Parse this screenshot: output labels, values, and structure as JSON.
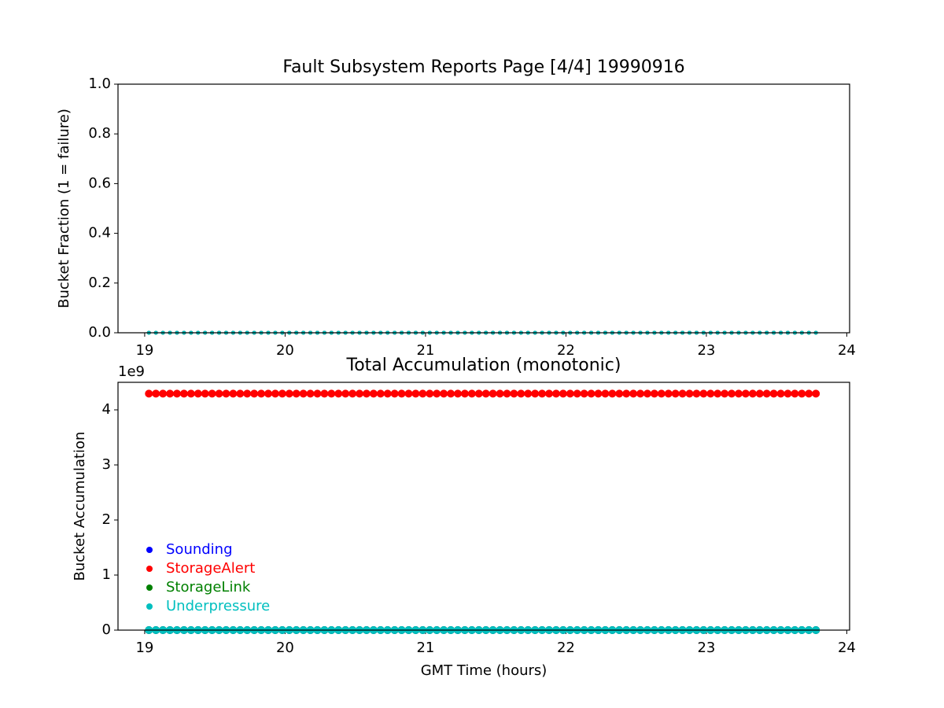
{
  "chart_data": [
    {
      "type": "scatter",
      "title": "Fault Subsystem Reports Page [4/4] 19990916",
      "y_label": "Bucket Fraction (1 = failure)",
      "x": [
        19.03,
        19.08,
        19.13,
        19.18,
        19.23,
        19.28,
        19.33,
        19.38,
        19.43,
        19.48,
        19.53,
        19.58,
        19.63,
        19.68,
        19.73,
        19.78,
        19.83,
        19.88,
        19.93,
        19.98,
        20.03,
        20.08,
        20.13,
        20.18,
        20.23,
        20.28,
        20.33,
        20.38,
        20.43,
        20.48,
        20.53,
        20.58,
        20.63,
        20.68,
        20.73,
        20.78,
        20.83,
        20.88,
        20.93,
        20.98,
        21.03,
        21.08,
        21.13,
        21.18,
        21.23,
        21.28,
        21.33,
        21.38,
        21.43,
        21.48,
        21.53,
        21.58,
        21.63,
        21.68,
        21.73,
        21.78,
        21.83,
        21.88,
        21.93,
        21.98,
        22.03,
        22.08,
        22.13,
        22.18,
        22.23,
        22.28,
        22.33,
        22.38,
        22.43,
        22.48,
        22.53,
        22.58,
        22.63,
        22.68,
        22.73,
        22.78,
        22.83,
        22.88,
        22.93,
        22.98,
        23.03,
        23.08,
        23.13,
        23.18,
        23.23,
        23.28,
        23.33,
        23.38,
        23.43,
        23.48,
        23.53,
        23.58,
        23.63,
        23.68,
        23.73,
        23.78
      ],
      "series": [
        {
          "color": "#0000ff",
          "values": [
            0,
            0,
            0,
            0,
            0,
            0,
            0,
            0,
            0,
            0,
            0,
            0,
            0,
            0,
            0,
            0,
            0,
            0,
            0,
            0,
            0,
            0,
            0,
            0,
            0,
            0,
            0,
            0,
            0,
            0,
            0,
            0,
            0,
            0,
            0,
            0,
            0,
            0,
            0,
            0,
            0,
            0,
            0,
            0,
            0,
            0,
            0,
            0,
            0,
            0,
            0,
            0,
            0,
            0,
            0,
            0,
            0,
            0,
            0,
            0,
            0,
            0,
            0,
            0,
            0,
            0,
            0,
            0,
            0,
            0,
            0,
            0,
            0,
            0,
            0,
            0,
            0,
            0,
            0,
            0,
            0,
            0,
            0,
            0,
            0,
            0,
            0,
            0,
            0,
            0,
            0,
            0,
            0,
            0,
            0,
            0
          ]
        },
        {
          "color": "#ff0000",
          "values": [
            0,
            0,
            0,
            0,
            0,
            0,
            0,
            0,
            0,
            0,
            0,
            0,
            0,
            0,
            0,
            0,
            0,
            0,
            0,
            0,
            0,
            0,
            0,
            0,
            0,
            0,
            0,
            0,
            0,
            0,
            0,
            0,
            0,
            0,
            0,
            0,
            0,
            0,
            0,
            0,
            0,
            0,
            0,
            0,
            0,
            0,
            0,
            0,
            0,
            0,
            0,
            0,
            0,
            0,
            0,
            0,
            0,
            0,
            0,
            0,
            0,
            0,
            0,
            0,
            0,
            0,
            0,
            0,
            0,
            0,
            0,
            0,
            0,
            0,
            0,
            0,
            0,
            0,
            0,
            0,
            0,
            0,
            0,
            0,
            0,
            0,
            0,
            0,
            0,
            0,
            0,
            0,
            0,
            0,
            0,
            0
          ]
        },
        {
          "color": "#008000",
          "values": [
            0,
            0,
            0,
            0,
            0,
            0,
            0,
            0,
            0,
            0,
            0,
            0,
            0,
            0,
            0,
            0,
            0,
            0,
            0,
            0,
            0,
            0,
            0,
            0,
            0,
            0,
            0,
            0,
            0,
            0,
            0,
            0,
            0,
            0,
            0,
            0,
            0,
            0,
            0,
            0,
            0,
            0,
            0,
            0,
            0,
            0,
            0,
            0,
            0,
            0,
            0,
            0,
            0,
            0,
            0,
            0,
            0,
            0,
            0,
            0,
            0,
            0,
            0,
            0,
            0,
            0,
            0,
            0,
            0,
            0,
            0,
            0,
            0,
            0,
            0,
            0,
            0,
            0,
            0,
            0,
            0,
            0,
            0,
            0,
            0,
            0,
            0,
            0,
            0,
            0,
            0,
            0,
            0,
            0,
            0,
            0
          ]
        },
        {
          "color": "#00bfbf",
          "values": [
            0,
            0,
            0,
            0,
            0,
            0,
            0,
            0,
            0,
            0,
            0,
            0,
            0,
            0,
            0,
            0,
            0,
            0,
            0,
            0,
            0,
            0,
            0,
            0,
            0,
            0,
            0,
            0,
            0,
            0,
            0,
            0,
            0,
            0,
            0,
            0,
            0,
            0,
            0,
            0,
            0,
            0,
            0,
            0,
            0,
            0,
            0,
            0,
            0,
            0,
            0,
            0,
            0,
            0,
            0,
            0,
            0,
            0,
            0,
            0,
            0,
            0,
            0,
            0,
            0,
            0,
            0,
            0,
            0,
            0,
            0,
            0,
            0,
            0,
            0,
            0,
            0,
            0,
            0,
            0,
            0,
            0,
            0,
            0,
            0,
            0,
            0,
            0,
            0,
            0,
            0,
            0,
            0,
            0,
            0,
            0
          ]
        }
      ],
      "xlim": [
        18.81,
        24.02
      ],
      "xticks": [
        19,
        20,
        21,
        22,
        23,
        24
      ],
      "ylim": [
        0,
        1
      ],
      "yticks": [
        {
          "value": 0,
          "label": "0.0"
        },
        0.2,
        0.4,
        0.6,
        0.8,
        {
          "value": 1,
          "label": "1.0"
        }
      ]
    },
    {
      "type": "scatter",
      "title": "Total Accumulation (monotonic)",
      "y_label": "Bucket Accumulation",
      "x_label": "GMT Time (hours)",
      "y_offset_label": "1e9",
      "x": [
        19.03,
        19.08,
        19.13,
        19.18,
        19.23,
        19.28,
        19.33,
        19.38,
        19.43,
        19.48,
        19.53,
        19.58,
        19.63,
        19.68,
        19.73,
        19.78,
        19.83,
        19.88,
        19.93,
        19.98,
        20.03,
        20.08,
        20.13,
        20.18,
        20.23,
        20.28,
        20.33,
        20.38,
        20.43,
        20.48,
        20.53,
        20.58,
        20.63,
        20.68,
        20.73,
        20.78,
        20.83,
        20.88,
        20.93,
        20.98,
        21.03,
        21.08,
        21.13,
        21.18,
        21.23,
        21.28,
        21.33,
        21.38,
        21.43,
        21.48,
        21.53,
        21.58,
        21.63,
        21.68,
        21.73,
        21.78,
        21.83,
        21.88,
        21.93,
        21.98,
        22.03,
        22.08,
        22.13,
        22.18,
        22.23,
        22.28,
        22.33,
        22.38,
        22.43,
        22.48,
        22.53,
        22.58,
        22.63,
        22.68,
        22.73,
        22.78,
        22.83,
        22.88,
        22.93,
        22.98,
        23.03,
        23.08,
        23.13,
        23.18,
        23.23,
        23.28,
        23.33,
        23.38,
        23.43,
        23.48,
        23.53,
        23.58,
        23.63,
        23.68,
        23.73,
        23.78
      ],
      "series": [
        {
          "name": "Sounding",
          "color": "#0000ff",
          "values": [
            0,
            0,
            0,
            0,
            0,
            0,
            0,
            0,
            0,
            0,
            0,
            0,
            0,
            0,
            0,
            0,
            0,
            0,
            0,
            0,
            0,
            0,
            0,
            0,
            0,
            0,
            0,
            0,
            0,
            0,
            0,
            0,
            0,
            0,
            0,
            0,
            0,
            0,
            0,
            0,
            0,
            0,
            0,
            0,
            0,
            0,
            0,
            0,
            0,
            0,
            0,
            0,
            0,
            0,
            0,
            0,
            0,
            0,
            0,
            0,
            0,
            0,
            0,
            0,
            0,
            0,
            0,
            0,
            0,
            0,
            0,
            0,
            0,
            0,
            0,
            0,
            0,
            0,
            0,
            0,
            0,
            0,
            0,
            0,
            0,
            0,
            0,
            0,
            0,
            0,
            0,
            0,
            0,
            0,
            0,
            0
          ]
        },
        {
          "name": "StorageAlert",
          "color": "#ff0000",
          "values": [
            4294967295,
            4294967295,
            4294967295,
            4294967295,
            4294967295,
            4294967295,
            4294967295,
            4294967295,
            4294967295,
            4294967295,
            4294967295,
            4294967295,
            4294967295,
            4294967295,
            4294967295,
            4294967295,
            4294967295,
            4294967295,
            4294967295,
            4294967295,
            4294967295,
            4294967295,
            4294967295,
            4294967295,
            4294967295,
            4294967295,
            4294967295,
            4294967295,
            4294967295,
            4294967295,
            4294967295,
            4294967295,
            4294967295,
            4294967295,
            4294967295,
            4294967295,
            4294967295,
            4294967295,
            4294967295,
            4294967295,
            4294967295,
            4294967295,
            4294967295,
            4294967295,
            4294967295,
            4294967295,
            4294967295,
            4294967295,
            4294967295,
            4294967295,
            4294967295,
            4294967295,
            4294967295,
            4294967295,
            4294967295,
            4294967295,
            4294967295,
            4294967295,
            4294967295,
            4294967295,
            4294967295,
            4294967295,
            4294967295,
            4294967295,
            4294967295,
            4294967295,
            4294967295,
            4294967295,
            4294967295,
            4294967295,
            4294967295,
            4294967295,
            4294967295,
            4294967295,
            4294967295,
            4294967295,
            4294967295,
            4294967295,
            4294967295,
            4294967295,
            4294967295,
            4294967295,
            4294967295,
            4294967295,
            4294967295,
            4294967295,
            4294967295,
            4294967295,
            4294967295,
            4294967295,
            4294967295,
            4294967295,
            4294967295,
            4294967295,
            4294967295,
            4294967295
          ]
        },
        {
          "name": "StorageLink",
          "color": "#008000",
          "values": [
            0,
            0,
            0,
            0,
            0,
            0,
            0,
            0,
            0,
            0,
            0,
            0,
            0,
            0,
            0,
            0,
            0,
            0,
            0,
            0,
            0,
            0,
            0,
            0,
            0,
            0,
            0,
            0,
            0,
            0,
            0,
            0,
            0,
            0,
            0,
            0,
            0,
            0,
            0,
            0,
            0,
            0,
            0,
            0,
            0,
            0,
            0,
            0,
            0,
            0,
            0,
            0,
            0,
            0,
            0,
            0,
            0,
            0,
            0,
            0,
            0,
            0,
            0,
            0,
            0,
            0,
            0,
            0,
            0,
            0,
            0,
            0,
            0,
            0,
            0,
            0,
            0,
            0,
            0,
            0,
            0,
            0,
            0,
            0,
            0,
            0,
            0,
            0,
            0,
            0,
            0,
            0,
            0,
            0,
            0,
            0
          ]
        },
        {
          "name": "Underpressure",
          "color": "#00bfbf",
          "values": [
            0,
            0,
            0,
            0,
            0,
            0,
            0,
            0,
            0,
            0,
            0,
            0,
            0,
            0,
            0,
            0,
            0,
            0,
            0,
            0,
            0,
            0,
            0,
            0,
            0,
            0,
            0,
            0,
            0,
            0,
            0,
            0,
            0,
            0,
            0,
            0,
            0,
            0,
            0,
            0,
            0,
            0,
            0,
            0,
            0,
            0,
            0,
            0,
            0,
            0,
            0,
            0,
            0,
            0,
            0,
            0,
            0,
            0,
            0,
            0,
            0,
            0,
            0,
            0,
            0,
            0,
            0,
            0,
            0,
            0,
            0,
            0,
            0,
            0,
            0,
            0,
            0,
            0,
            0,
            0,
            0,
            0,
            0,
            0,
            0,
            0,
            0,
            0,
            0,
            0,
            0,
            0,
            0,
            0,
            0,
            0
          ]
        }
      ],
      "xlim": [
        18.81,
        24.02
      ],
      "xticks": [
        19,
        20,
        21,
        22,
        23,
        24
      ],
      "ylim": [
        0,
        4500000000
      ],
      "yticks": [
        0,
        {
          "value": 1000000000,
          "label": "1"
        },
        {
          "value": 2000000000,
          "label": "2"
        },
        {
          "value": 3000000000,
          "label": "3"
        },
        {
          "value": 4000000000,
          "label": "4"
        }
      ],
      "legend": "lower left"
    }
  ]
}
